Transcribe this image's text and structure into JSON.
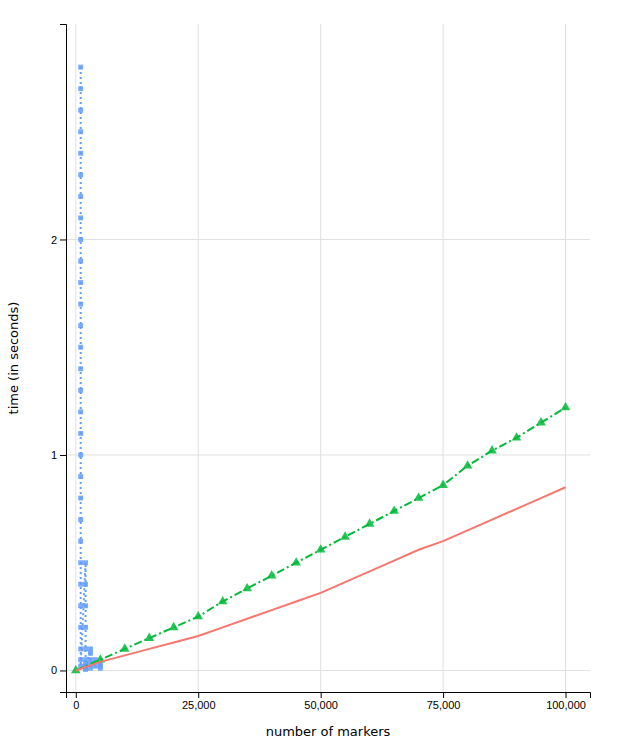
{
  "chart_data": {
    "type": "line",
    "xlabel": "number of markers",
    "ylabel": "time (in seconds)",
    "xlim": [
      -2000,
      105000
    ],
    "ylim": [
      -0.1,
      3.0
    ],
    "xticks": [
      0,
      {
        "value": 25000,
        "label": "25,000"
      },
      {
        "value": 50000,
        "label": "50,000"
      },
      {
        "value": 75000,
        "label": "75,000"
      },
      {
        "value": 100000,
        "label": "100,000"
      }
    ],
    "yticks": [
      0,
      1,
      2
    ],
    "grid": true,
    "series": [
      {
        "color": "#619CFF",
        "marker": "square",
        "line_style": "dotted",
        "x": [
          1000,
          1000,
          1000,
          1000,
          1000,
          1000,
          1000,
          1000,
          1000,
          1000,
          1000,
          1000,
          1000,
          1000,
          1000,
          1000,
          1000,
          1000,
          1000,
          1000,
          1000,
          1000,
          1000,
          1000,
          1000,
          1000,
          1000,
          1000,
          1000,
          1000,
          2000,
          2000,
          2000,
          2000,
          2000,
          2000,
          2000,
          2000,
          2000,
          2000,
          3000,
          3000,
          3000,
          3000,
          3000,
          4000,
          4000,
          5000,
          5000,
          5000
        ],
        "values": [
          2.8,
          2.7,
          2.6,
          2.5,
          2.4,
          2.3,
          2.2,
          2.1,
          2.0,
          1.9,
          1.8,
          1.7,
          1.6,
          1.5,
          1.4,
          1.3,
          1.2,
          1.1,
          1.0,
          0.9,
          0.8,
          0.7,
          0.6,
          0.5,
          0.4,
          0.3,
          0.2,
          0.1,
          0.05,
          0.02,
          0.5,
          0.4,
          0.3,
          0.2,
          0.1,
          0.05,
          0.03,
          0.02,
          0.01,
          0.005,
          0.1,
          0.08,
          0.05,
          0.03,
          0.01,
          0.05,
          0.02,
          0.03,
          0.02,
          0.01
        ]
      },
      {
        "color": "#00BA38",
        "marker": "triangle",
        "line_style": "dashdot",
        "x": [
          0,
          5000,
          10000,
          15000,
          20000,
          25000,
          30000,
          35000,
          40000,
          45000,
          50000,
          55000,
          60000,
          65000,
          70000,
          75000,
          80000,
          85000,
          90000,
          95000,
          100000
        ],
        "values": [
          0.0,
          0.05,
          0.1,
          0.15,
          0.2,
          0.25,
          0.32,
          0.38,
          0.44,
          0.5,
          0.56,
          0.62,
          0.68,
          0.74,
          0.8,
          0.86,
          0.95,
          1.02,
          1.08,
          1.15,
          1.22
        ]
      },
      {
        "color": "#F8766D",
        "marker": "none",
        "line_style": "solid",
        "x": [
          0,
          5000,
          10000,
          15000,
          20000,
          25000,
          30000,
          35000,
          40000,
          45000,
          50000,
          55000,
          60000,
          65000,
          70000,
          75000,
          80000,
          85000,
          90000,
          95000,
          100000
        ],
        "values": [
          0.0,
          0.04,
          0.07,
          0.1,
          0.13,
          0.16,
          0.2,
          0.24,
          0.28,
          0.32,
          0.36,
          0.41,
          0.46,
          0.51,
          0.56,
          0.6,
          0.65,
          0.7,
          0.75,
          0.8,
          0.85
        ]
      }
    ]
  }
}
